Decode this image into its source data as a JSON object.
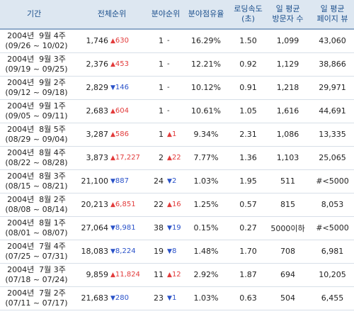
{
  "headers": {
    "period": "기간",
    "overall_rank": "전체순위",
    "field_rank": "분야순위",
    "field_share": "분야점유율",
    "loading_speed": "로딩속도\n(초)",
    "daily_visitors": "일 평균\n방문자 수",
    "daily_pageviews": "일 평균\n페이지 뷰"
  },
  "rows": [
    {
      "week": "2004년  9월 4주",
      "range": "(09/26 ~ 10/02)",
      "rank": "1,746",
      "rank_dir": "up",
      "rank_arrow": "▲",
      "rank_change": "630",
      "field_rank": "1",
      "field_dir": "none",
      "field_arrow": "",
      "field_change": "-",
      "share": "16.29%",
      "speed": "1.50",
      "visitors": "1,099",
      "pageviews": "43,060"
    },
    {
      "week": "2004년  9월 3주",
      "range": "(09/19 ~ 09/25)",
      "rank": "2,376",
      "rank_dir": "up",
      "rank_arrow": "▲",
      "rank_change": "453",
      "field_rank": "1",
      "field_dir": "none",
      "field_arrow": "",
      "field_change": "-",
      "share": "12.21%",
      "speed": "0.92",
      "visitors": "1,129",
      "pageviews": "38,866"
    },
    {
      "week": "2004년  9월 2주",
      "range": "(09/12 ~ 09/18)",
      "rank": "2,829",
      "rank_dir": "down",
      "rank_arrow": "▼",
      "rank_change": "146",
      "field_rank": "1",
      "field_dir": "none",
      "field_arrow": "",
      "field_change": "-",
      "share": "10.12%",
      "speed": "0.91",
      "visitors": "1,218",
      "pageviews": "29,971"
    },
    {
      "week": "2004년  9월 1주",
      "range": "(09/05 ~ 09/11)",
      "rank": "2,683",
      "rank_dir": "up",
      "rank_arrow": "▲",
      "rank_change": "604",
      "field_rank": "1",
      "field_dir": "none",
      "field_arrow": "",
      "field_change": "-",
      "share": "10.61%",
      "speed": "1.05",
      "visitors": "1,616",
      "pageviews": "44,691"
    },
    {
      "week": "2004년  8월 5주",
      "range": "(08/29 ~ 09/04)",
      "rank": "3,287",
      "rank_dir": "up",
      "rank_arrow": "▲",
      "rank_change": "586",
      "field_rank": "1",
      "field_dir": "up",
      "field_arrow": "▲",
      "field_change": "1",
      "share": "9.34%",
      "speed": "2.31",
      "visitors": "1,086",
      "pageviews": "13,335"
    },
    {
      "week": "2004년  8월 4주",
      "range": "(08/22 ~ 08/28)",
      "rank": "3,873",
      "rank_dir": "up",
      "rank_arrow": "▲",
      "rank_change": "17,227",
      "field_rank": "2",
      "field_dir": "up",
      "field_arrow": "▲",
      "field_change": "22",
      "share": "7.77%",
      "speed": "1.36",
      "visitors": "1,103",
      "pageviews": "25,065"
    },
    {
      "week": "2004년  8월 3주",
      "range": "(08/15 ~ 08/21)",
      "rank": "21,100",
      "rank_dir": "down",
      "rank_arrow": "▼",
      "rank_change": "887",
      "field_rank": "24",
      "field_dir": "down",
      "field_arrow": "▼",
      "field_change": "2",
      "share": "1.03%",
      "speed": "1.95",
      "visitors": "511",
      "pageviews": "#<5000"
    },
    {
      "week": "2004년  8월 2주",
      "range": "(08/08 ~ 08/14)",
      "rank": "20,213",
      "rank_dir": "up",
      "rank_arrow": "▲",
      "rank_change": "6,851",
      "field_rank": "22",
      "field_dir": "up",
      "field_arrow": "▲",
      "field_change": "16",
      "share": "1.25%",
      "speed": "0.57",
      "visitors": "815",
      "pageviews": "8,053"
    },
    {
      "week": "2004년  8월 1주",
      "range": "(08/01 ~ 08/07)",
      "rank": "27,064",
      "rank_dir": "down",
      "rank_arrow": "▼",
      "rank_change": "8,981",
      "field_rank": "38",
      "field_dir": "down",
      "field_arrow": "▼",
      "field_change": "19",
      "share": "0.15%",
      "speed": "0.27",
      "visitors": "5000이하",
      "pageviews": "#<5000"
    },
    {
      "week": "2004년  7월 4주",
      "range": "(07/25 ~ 07/31)",
      "rank": "18,083",
      "rank_dir": "down",
      "rank_arrow": "▼",
      "rank_change": "8,224",
      "field_rank": "19",
      "field_dir": "down",
      "field_arrow": "▼",
      "field_change": "8",
      "share": "1.48%",
      "speed": "1.70",
      "visitors": "708",
      "pageviews": "6,981"
    },
    {
      "week": "2004년  7월 3주",
      "range": "(07/18 ~ 07/24)",
      "rank": "9,859",
      "rank_dir": "up",
      "rank_arrow": "▲",
      "rank_change": "11,824",
      "field_rank": "11",
      "field_dir": "up",
      "field_arrow": "▲",
      "field_change": "12",
      "share": "2.92%",
      "speed": "1.87",
      "visitors": "694",
      "pageviews": "10,205"
    },
    {
      "week": "2004년  7월 2주",
      "range": "(07/11 ~ 07/17)",
      "rank": "21,683",
      "rank_dir": "down",
      "rank_arrow": "▼",
      "rank_change": "280",
      "field_rank": "23",
      "field_dir": "down",
      "field_arrow": "▼",
      "field_change": "1",
      "share": "1.03%",
      "speed": "0.63",
      "visitors": "504",
      "pageviews": "6,455"
    }
  ],
  "colors": {
    "up": "#e23b3b",
    "down": "#2a52c9",
    "header_bg": "#dde7f1",
    "header_text": "#1b4f8c"
  }
}
